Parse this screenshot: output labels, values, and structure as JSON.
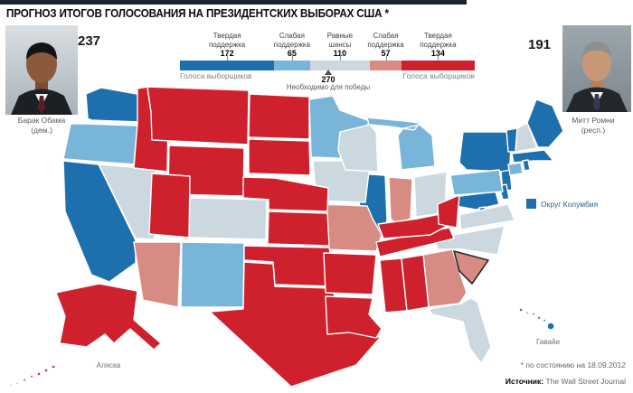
{
  "header": {
    "title": "ПРОГНОЗ ИТОГОВ ГОЛОСОВАНИЯ НА ПРЕЗИДЕНТСКИХ ВЫБОРАХ США *",
    "bar_color": "#19222e"
  },
  "candidates": {
    "obama": {
      "name": "Барак Обама",
      "party": "(дем.)",
      "votes": "237"
    },
    "romney": {
      "name": "Митт Ромни",
      "party": "(респ.)",
      "votes": "191"
    }
  },
  "legend": {
    "segments": [
      {
        "label_line1": "Твердая",
        "label_line2": "поддержка",
        "value": 172,
        "category": "strong_dem"
      },
      {
        "label_line1": "Слабая",
        "label_line2": "поддержка",
        "value": 65,
        "category": "lean_dem"
      },
      {
        "label_line1": "Равные",
        "label_line2": "шансы",
        "value": 110,
        "category": "tossup"
      },
      {
        "label_line1": "Слабая",
        "label_line2": "поддержка",
        "value": 57,
        "category": "lean_rep"
      },
      {
        "label_line1": "Твердая",
        "label_line2": "поддержка",
        "value": 134,
        "category": "strong_rep"
      }
    ],
    "electors_left": "Голоса выборщиков",
    "electors_right": "Голоса выборщиков",
    "needed_value": "270",
    "needed_label": "Необходимо для победы"
  },
  "map": {
    "colors": {
      "strong_dem": "#1e6fae",
      "lean_dem": "#79b5d8",
      "tossup": "#ccd8e0",
      "lean_rep": "#d78b82",
      "strong_rep": "#cf202e"
    },
    "dc_label": "Округ Колумбия",
    "alaska_label": "Аляска",
    "hawaii_label": "Гавайи"
  },
  "chart_data": {
    "type": "choropleth_map",
    "title": "ПРОГНОЗ ИТОГОВ ГОЛОСОВАНИЯ НА ПРЕЗИДЕНТСКИХ ВЫБОРАХ США *",
    "totals": {
      "obama": 237,
      "romney": 191,
      "needed_to_win": 270
    },
    "highlighted_state": "SC",
    "categories": [
      {
        "key": "strong_dem",
        "name": "Твердая поддержка (Обама)",
        "electoral_votes": 172,
        "color": "#1e6fae",
        "states": [
          "WA",
          "CA",
          "IL",
          "NY",
          "NJ",
          "MD",
          "DE",
          "MA",
          "RI",
          "VT",
          "ME",
          "HI",
          "DC"
        ]
      },
      {
        "key": "lean_dem",
        "name": "Слабая поддержка (Обама)",
        "electoral_votes": 65,
        "color": "#79b5d8",
        "states": [
          "OR",
          "NM",
          "MN",
          "MI",
          "PA",
          "CT"
        ]
      },
      {
        "key": "tossup",
        "name": "Равные шансы",
        "electoral_votes": 110,
        "color": "#ccd8e0",
        "states": [
          "NV",
          "CO",
          "IA",
          "WI",
          "OH",
          "NH",
          "VA",
          "NC",
          "FL"
        ]
      },
      {
        "key": "lean_rep",
        "name": "Слабая поддержка (Ромни)",
        "electoral_votes": 57,
        "color": "#d78b82",
        "states": [
          "AZ",
          "MO",
          "IN",
          "GA",
          "SC"
        ]
      },
      {
        "key": "strong_rep",
        "name": "Твердая поддержка (Ромни)",
        "electoral_votes": 134,
        "color": "#cf202e",
        "states": [
          "ID",
          "MT",
          "WY",
          "UT",
          "ND",
          "SD",
          "NE",
          "KS",
          "OK",
          "TX",
          "AK",
          "LA",
          "AR",
          "MS",
          "AL",
          "TN",
          "KY",
          "WV"
        ]
      }
    ]
  },
  "footer": {
    "note": "* по состоянию на 18.09.2012",
    "source_label": "Источник:",
    "source_value": "The Wall Street Journal"
  }
}
